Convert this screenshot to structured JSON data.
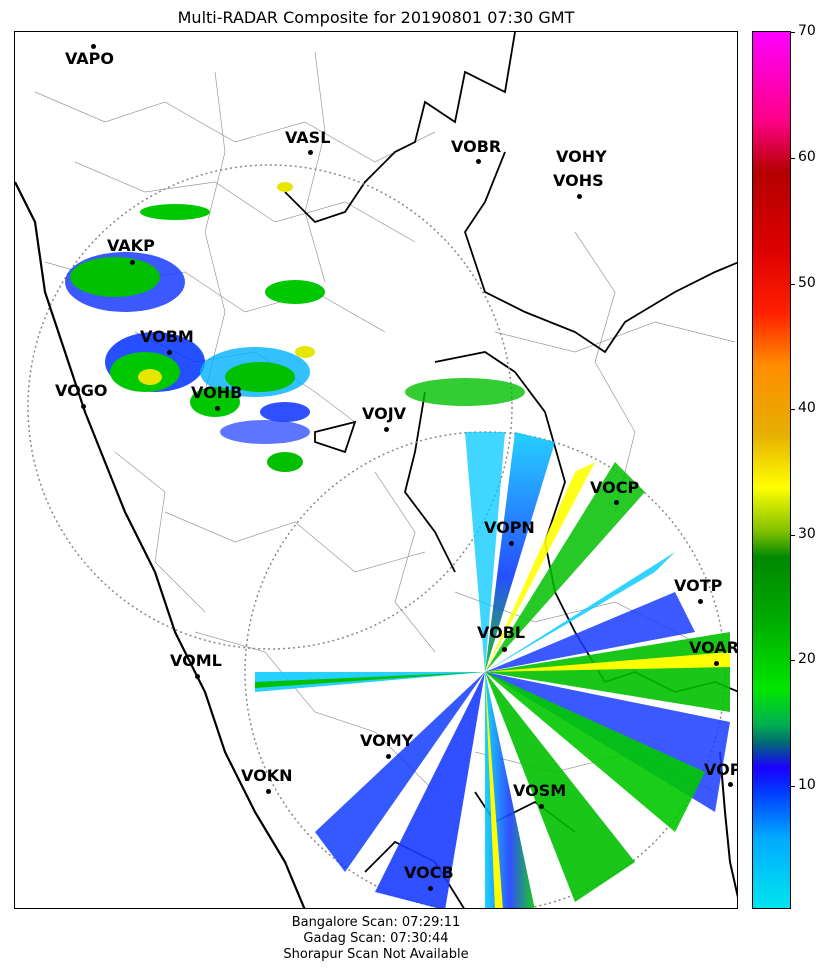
{
  "title": "Multi-RADAR Composite for 20190801 07:30 GMT",
  "stations": [
    {
      "name": "VAPO"
    },
    {
      "name": "VASL"
    },
    {
      "name": "VOBR"
    },
    {
      "name": "VOHY"
    },
    {
      "name": "VOHS"
    },
    {
      "name": "VAKP"
    },
    {
      "name": "VOBM"
    },
    {
      "name": "VOGO"
    },
    {
      "name": "VOHB"
    },
    {
      "name": "VOJV"
    },
    {
      "name": "VOCP"
    },
    {
      "name": "VOPN"
    },
    {
      "name": "VOTP"
    },
    {
      "name": "VOBL"
    },
    {
      "name": "VOAR"
    },
    {
      "name": "VOML"
    },
    {
      "name": "VOMY"
    },
    {
      "name": "VOKN"
    },
    {
      "name": "VOPC"
    },
    {
      "name": "VOSM"
    },
    {
      "name": "VOCB"
    }
  ],
  "colorbar": {
    "min": 0,
    "max": 70,
    "ticks": [
      "10",
      "20",
      "30",
      "40",
      "50",
      "60",
      "70"
    ],
    "colors": {
      "low": "#00e5ee",
      "mid": "#00dd00",
      "yellow": "#ffff00",
      "orange": "#ff8c00",
      "red": "#cc0000",
      "top": "#ff00ff"
    }
  },
  "footer": {
    "line1": "Bangalore Scan: 07:29:11",
    "line2": "Gadag Scan: 07:30:44",
    "line3": "Shorapur Scan Not Available"
  }
}
